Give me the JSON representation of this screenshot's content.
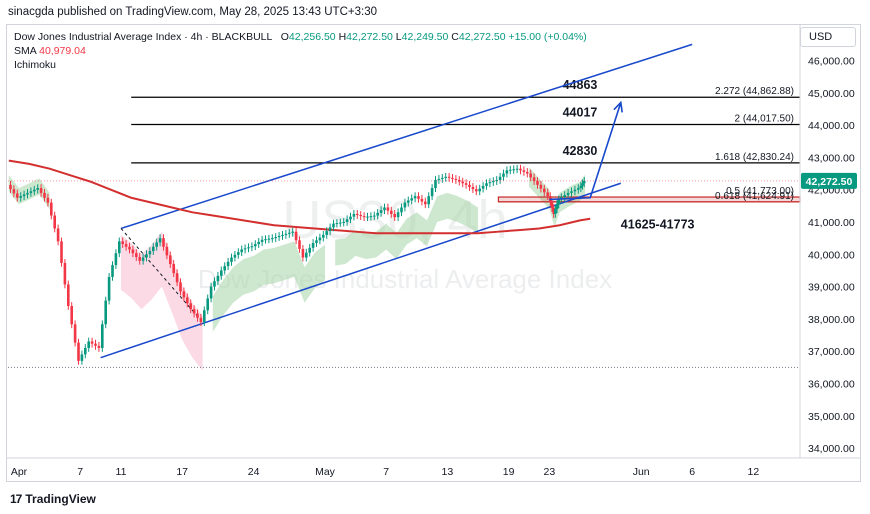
{
  "header": {
    "publisher": "sinacgda published on TradingView.com, May 28, 2025 13:43 UTC+3:30"
  },
  "legend": {
    "symbol": "Dow Jones Industrial Average Index · 4h · BLACKBULL",
    "o_label": "O",
    "o_value": "42,256.50",
    "h_label": "H",
    "h_value": "42,272.50",
    "l_label": "L",
    "l_value": "42,249.50",
    "c_label": "C",
    "c_value": "42,272.50",
    "change": "+15.00 (+0.04%)",
    "sma_label": "SMA",
    "sma_value": "40,979.04",
    "ichimoku_label": "Ichimoku"
  },
  "currency": "USD",
  "watermark": {
    "ticker": "US30, 4h",
    "name": "Dow Jones Industrial Average Index"
  },
  "footer": {
    "brand": "TradingView",
    "logo": "17"
  },
  "colors": {
    "up": "#089981",
    "down": "#f23645",
    "sma": "#d32f2f",
    "trend": "#1848cc",
    "fib": "#000000",
    "cloud_green": "#a5d6a7",
    "cloud_red": "#f8bbd0",
    "zone": "#c62828"
  },
  "chart_data": {
    "type": "line",
    "title": "",
    "xlabel": "",
    "ylabel": "",
    "ylim": [
      33500,
      46750
    ],
    "grid": false,
    "x_ticks": [
      {
        "label": "Apr",
        "t": 0
      },
      {
        "label": "7",
        "t": 6
      },
      {
        "label": "11",
        "t": 10
      },
      {
        "label": "17",
        "t": 16
      },
      {
        "label": "24",
        "t": 23
      },
      {
        "label": "May",
        "t": 30
      },
      {
        "label": "7",
        "t": 36
      },
      {
        "label": "13",
        "t": 42
      },
      {
        "label": "19",
        "t": 48
      },
      {
        "label": "23",
        "t": 52
      },
      {
        "label": "Jun",
        "t": 61
      },
      {
        "label": "6",
        "t": 66
      },
      {
        "label": "12",
        "t": 72
      }
    ],
    "y_ticks": [
      "46,000.00",
      "45,000.00",
      "44,000.00",
      "43,000.00",
      "42,000.00",
      "41,000.00",
      "40,000.00",
      "39,000.00",
      "38,000.00",
      "37,000.00",
      "36,000.00",
      "35,000.00",
      "34,000.00"
    ],
    "y_tick_values": [
      46000,
      45000,
      44000,
      43000,
      42000,
      41000,
      40000,
      39000,
      38000,
      37000,
      36000,
      35000,
      34000
    ],
    "last_price": {
      "label": "42,272.50",
      "value": 42272.5
    },
    "series": [
      {
        "name": "Price",
        "points": [
          [
            -1,
            42150
          ],
          [
            0,
            41750
          ],
          [
            1,
            41900
          ],
          [
            2,
            42050
          ],
          [
            3,
            41600
          ],
          [
            4,
            40400
          ],
          [
            5,
            38400
          ],
          [
            6,
            36700
          ],
          [
            7,
            37300
          ],
          [
            8,
            37100
          ],
          [
            9,
            39300
          ],
          [
            10,
            40400
          ],
          [
            11,
            40150
          ],
          [
            12,
            39800
          ],
          [
            13,
            40100
          ],
          [
            14,
            40500
          ],
          [
            15,
            39700
          ],
          [
            16,
            38850
          ],
          [
            17,
            38300
          ],
          [
            18,
            37900
          ],
          [
            19,
            39000
          ],
          [
            20,
            39500
          ],
          [
            21,
            39900
          ],
          [
            22,
            40150
          ],
          [
            23,
            40250
          ],
          [
            24,
            40450
          ],
          [
            25,
            40500
          ],
          [
            26,
            40600
          ],
          [
            27,
            40700
          ],
          [
            28,
            39900
          ],
          [
            29,
            40350
          ],
          [
            30,
            40600
          ],
          [
            31,
            40950
          ],
          [
            32,
            41000
          ],
          [
            33,
            41250
          ],
          [
            34,
            41150
          ],
          [
            35,
            41200
          ],
          [
            36,
            41450
          ],
          [
            37,
            41150
          ],
          [
            38,
            41600
          ],
          [
            39,
            41800
          ],
          [
            40,
            41550
          ],
          [
            41,
            42300
          ],
          [
            42,
            42400
          ],
          [
            43,
            42300
          ],
          [
            44,
            42150
          ],
          [
            45,
            41950
          ],
          [
            46,
            42200
          ],
          [
            47,
            42300
          ],
          [
            48,
            42600
          ],
          [
            49,
            42650
          ],
          [
            50,
            42500
          ],
          [
            51,
            42150
          ],
          [
            52,
            41800
          ],
          [
            52.5,
            41250
          ],
          [
            53,
            41700
          ],
          [
            54,
            41900
          ],
          [
            55,
            42050
          ],
          [
            55.5,
            42272.5
          ]
        ]
      },
      {
        "name": "SMA",
        "points": [
          [
            -1,
            42900
          ],
          [
            1,
            42800
          ],
          [
            3,
            42650
          ],
          [
            5,
            42450
          ],
          [
            7,
            42250
          ],
          [
            9,
            42000
          ],
          [
            11,
            41750
          ],
          [
            13,
            41600
          ],
          [
            15,
            41450
          ],
          [
            17,
            41300
          ],
          [
            19,
            41200
          ],
          [
            21,
            41100
          ],
          [
            23,
            41000
          ],
          [
            25,
            40900
          ],
          [
            27,
            40850
          ],
          [
            29,
            40800
          ],
          [
            31,
            40750
          ],
          [
            33,
            40700
          ],
          [
            35,
            40650
          ],
          [
            37,
            40650
          ],
          [
            39,
            40650
          ],
          [
            41,
            40650
          ],
          [
            43,
            40650
          ],
          [
            45,
            40650
          ],
          [
            47,
            40700
          ],
          [
            49,
            40750
          ],
          [
            51,
            40800
          ],
          [
            53,
            40900
          ],
          [
            55,
            41050
          ],
          [
            56,
            41100
          ]
        ]
      }
    ],
    "fib_levels": [
      {
        "ratio": "2.272",
        "value": 44862.88,
        "label": "2.272 (44,862.88)",
        "callout": "44863"
      },
      {
        "ratio": "2",
        "value": 44017.5,
        "label": "2 (44,017.50)",
        "callout": "44017"
      },
      {
        "ratio": "1.618",
        "value": 42830.24,
        "label": "1.618 (42,830.24)",
        "callout": "42830"
      },
      {
        "ratio": "0.5",
        "value": 41773.0,
        "label": "0.5 (41,773.00)",
        "callout": ""
      },
      {
        "ratio": "0.618",
        "value": 41624.91,
        "label": "0.618 (41,624.91)",
        "callout": ""
      }
    ],
    "support_zone": {
      "low": 41625,
      "high": 41773,
      "label": "41625-41773"
    },
    "channel": {
      "upper": [
        [
          10,
          40800
        ],
        [
          66,
          46500
        ]
      ],
      "lower": [
        [
          8,
          36800
        ],
        [
          59,
          42200
        ]
      ]
    },
    "projection": [
      [
        52,
        41700
      ],
      [
        56,
        41750
      ],
      [
        59,
        44700
      ]
    ]
  }
}
